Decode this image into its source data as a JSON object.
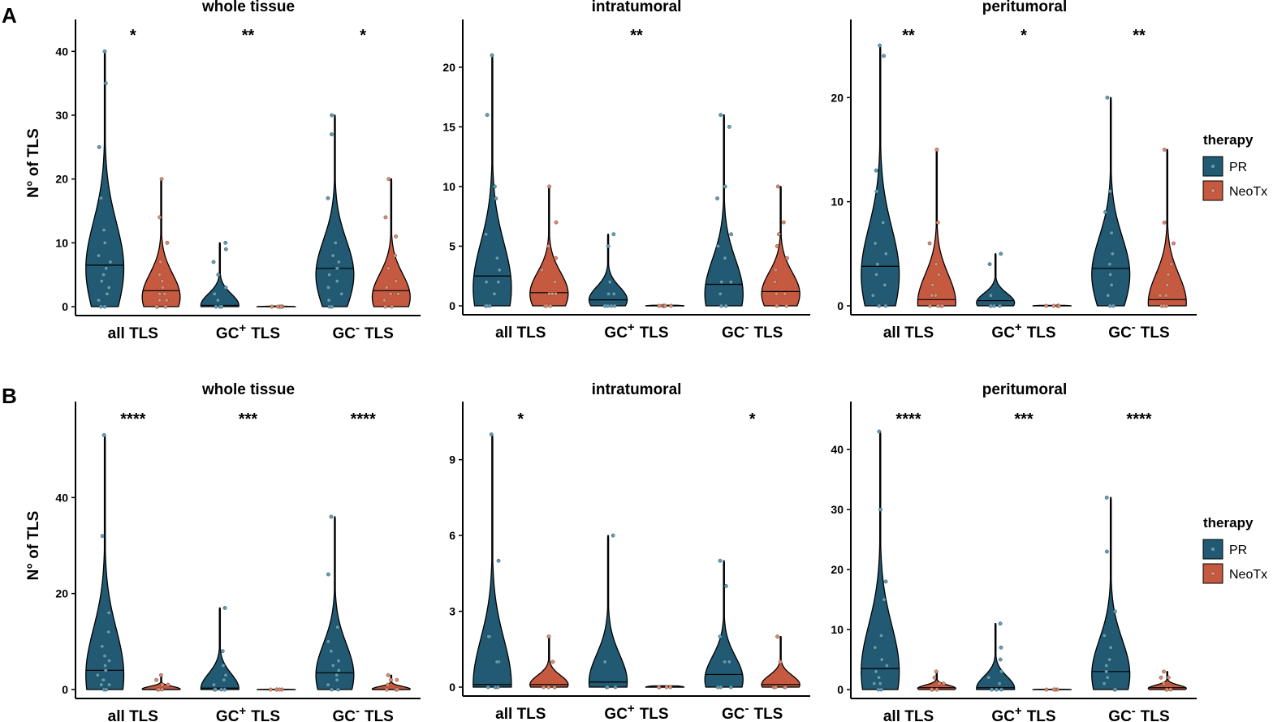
{
  "chart_data": [
    {
      "type": "violin",
      "row": "A",
      "title": "whole tissue",
      "ylabel": "N° of TLS",
      "ylim": [
        0,
        45
      ],
      "yticks": [
        0,
        10,
        20,
        30,
        40
      ],
      "categories": [
        {
          "base": "all TLS",
          "sup": "",
          "post": ""
        },
        {
          "base": "GC",
          "sup": "+",
          "post": "TLS"
        },
        {
          "base": "GC",
          "sup": "-",
          "post": "TLS"
        }
      ],
      "significance": [
        "*",
        "**",
        "*"
      ],
      "series": [
        {
          "name": "PR",
          "max": [
            40,
            10,
            30
          ],
          "median": [
            6.5,
            0.2,
            6
          ],
          "mode": [
            6,
            0.2,
            5
          ],
          "width": [
            0.9,
            0.9,
            0.9
          ],
          "points": [
            [
              40,
              35,
              25,
              17,
              12,
              10,
              8,
              7,
              6,
              5,
              4,
              3,
              2,
              1,
              0,
              0
            ],
            [
              10,
              9,
              7,
              5,
              3,
              2,
              1,
              0,
              0,
              0
            ],
            [
              30,
              27,
              17,
              10,
              8,
              7,
              6,
              5,
              4,
              3,
              2,
              1,
              0,
              0
            ]
          ]
        },
        {
          "name": "NeoTx",
          "max": [
            20,
            0.1,
            20
          ],
          "median": [
            2.5,
            0,
            2.5
          ],
          "mode": [
            1.5,
            0,
            1.5
          ],
          "width": [
            0.9,
            0.9,
            0.9
          ],
          "points": [
            [
              20,
              14,
              10,
              7,
              5,
              4,
              3,
              2,
              2,
              1,
              1,
              0,
              0,
              0
            ],
            [
              0,
              0,
              0,
              0,
              0,
              0
            ],
            [
              20,
              14,
              11,
              8,
              6,
              4,
              3,
              2,
              2,
              1,
              0,
              0
            ]
          ]
        }
      ]
    },
    {
      "type": "violin",
      "row": "A",
      "title": "intratumoral",
      "ylabel": "",
      "ylim": [
        0,
        24
      ],
      "yticks": [
        0,
        5,
        10,
        15,
        20
      ],
      "categories": [
        {
          "base": "all TLS",
          "sup": "",
          "post": ""
        },
        {
          "base": "GC",
          "sup": "+",
          "post": "TLS"
        },
        {
          "base": "GC",
          "sup": "-",
          "post": "TLS"
        }
      ],
      "significance": [
        "",
        "**",
        ""
      ],
      "series": [
        {
          "name": "PR",
          "max": [
            21,
            6,
            16
          ],
          "median": [
            2.5,
            0.5,
            1.8
          ],
          "mode": [
            1.5,
            0.5,
            1
          ],
          "width": [
            0.9,
            0.9,
            0.9
          ],
          "points": [
            [
              21,
              16,
              10,
              9,
              6,
              4,
              3,
              2,
              2,
              1,
              1,
              0,
              0,
              0
            ],
            [
              6,
              5,
              2,
              1,
              1,
              0,
              0,
              0,
              0
            ],
            [
              16,
              15,
              10,
              9,
              6,
              5,
              4,
              2,
              2,
              1,
              0,
              0
            ]
          ]
        },
        {
          "name": "NeoTx",
          "max": [
            10,
            0.05,
            10
          ],
          "median": [
            1.1,
            0,
            1.2
          ],
          "mode": [
            1,
            0,
            1
          ],
          "width": [
            0.9,
            0.9,
            0.9
          ],
          "points": [
            [
              10,
              7,
              5,
              4,
              3,
              2,
              1,
              1,
              1,
              0,
              0,
              0
            ],
            [
              0,
              0,
              0,
              0,
              0,
              0
            ],
            [
              10,
              7,
              6,
              5,
              4,
              3,
              2,
              1,
              1,
              0,
              0
            ]
          ]
        }
      ]
    },
    {
      "type": "violin",
      "row": "A",
      "title": "peritumoral",
      "ylabel": "",
      "ylim": [
        0,
        27.5
      ],
      "yticks": [
        0,
        10,
        20
      ],
      "categories": [
        {
          "base": "all TLS",
          "sup": "",
          "post": ""
        },
        {
          "base": "GC",
          "sup": "+",
          "post": "TLS"
        },
        {
          "base": "GC",
          "sup": "-",
          "post": "TLS"
        }
      ],
      "significance": [
        "**",
        "*",
        "**"
      ],
      "series": [
        {
          "name": "PR",
          "max": [
            25,
            5,
            20
          ],
          "median": [
            3.8,
            0.5,
            3.6
          ],
          "mode": [
            3,
            0.3,
            3
          ],
          "width": [
            0.9,
            0.9,
            0.9
          ],
          "points": [
            [
              25,
              24,
              13,
              11,
              8,
              6,
              5,
              4,
              3,
              2,
              1,
              0,
              0
            ],
            [
              5,
              4,
              1,
              0,
              0,
              0,
              0
            ],
            [
              20,
              11,
              9,
              7,
              5,
              4,
              3,
              2,
              1,
              0,
              0
            ]
          ]
        },
        {
          "name": "NeoTx",
          "max": [
            15,
            0.05,
            15
          ],
          "median": [
            0.6,
            0,
            0.6
          ],
          "mode": [
            0.3,
            0,
            0.3
          ],
          "width": [
            0.9,
            0.9,
            0.9
          ],
          "points": [
            [
              15,
              8,
              6,
              4,
              3,
              2,
              1,
              1,
              0,
              0,
              0,
              0
            ],
            [
              0,
              0,
              0,
              0,
              0
            ],
            [
              15,
              8,
              6,
              4,
              3,
              2,
              1,
              1,
              0,
              0,
              0
            ]
          ]
        }
      ]
    },
    {
      "type": "violin",
      "row": "B",
      "title": "whole tissue",
      "ylabel": "N° of TLS",
      "ylim": [
        0,
        60
      ],
      "yticks": [
        0,
        20,
        40
      ],
      "categories": [
        {
          "base": "all TLS",
          "sup": "",
          "post": ""
        },
        {
          "base": "GC",
          "sup": "+",
          "post": "TLS"
        },
        {
          "base": "GC",
          "sup": "-",
          "post": "TLS"
        }
      ],
      "significance": [
        "****",
        "***",
        "****"
      ],
      "series": [
        {
          "name": "PR",
          "max": [
            53,
            17,
            36
          ],
          "median": [
            4,
            0.3,
            3.5
          ],
          "mode": [
            3,
            0.2,
            3
          ],
          "width": [
            0.9,
            0.9,
            0.9
          ],
          "points": [
            [
              53,
              32,
              16,
              12,
              9,
              7,
              6,
              5,
              4,
              3,
              2,
              2,
              1,
              1,
              0,
              0
            ],
            [
              17,
              8,
              5,
              3,
              2,
              1,
              1,
              0,
              0,
              0,
              0
            ],
            [
              36,
              24,
              13,
              10,
              8,
              6,
              5,
              4,
              3,
              2,
              1,
              0,
              0
            ]
          ]
        },
        {
          "name": "NeoTx",
          "max": [
            3,
            0.05,
            3
          ],
          "median": [
            0,
            0,
            0
          ],
          "mode": [
            0.1,
            0,
            0.1
          ],
          "width": [
            0.9,
            0.9,
            0.9
          ],
          "points": [
            [
              3,
              2,
              1,
              1,
              0,
              0,
              0
            ],
            [
              0,
              0,
              0,
              0,
              0
            ],
            [
              3,
              2,
              2,
              1,
              0,
              0,
              0
            ]
          ]
        }
      ]
    },
    {
      "type": "violin",
      "row": "B",
      "title": "intratumoral",
      "ylabel": "",
      "ylim": [
        0,
        11.3
      ],
      "yticks": [
        0,
        3,
        6,
        9
      ],
      "categories": [
        {
          "base": "all TLS",
          "sup": "",
          "post": ""
        },
        {
          "base": "GC",
          "sup": "+",
          "post": "TLS"
        },
        {
          "base": "GC",
          "sup": "-",
          "post": "TLS"
        }
      ],
      "significance": [
        "*",
        "",
        "*"
      ],
      "series": [
        {
          "name": "PR",
          "max": [
            10,
            6,
            5
          ],
          "median": [
            0.1,
            0.2,
            0.5
          ],
          "mode": [
            0.1,
            0.2,
            0.3
          ],
          "width": [
            0.9,
            0.9,
            0.9
          ],
          "points": [
            [
              10,
              5,
              2,
              2,
              1,
              1,
              0,
              0,
              0,
              0
            ],
            [
              6,
              1,
              1,
              0,
              0,
              0,
              0
            ],
            [
              5,
              4,
              2,
              1,
              1,
              0,
              0,
              0
            ]
          ]
        },
        {
          "name": "NeoTx",
          "max": [
            2,
            0.05,
            2
          ],
          "median": [
            0.1,
            0,
            0.1
          ],
          "mode": [
            0.1,
            0,
            0.1
          ],
          "width": [
            0.9,
            0.9,
            0.9
          ],
          "points": [
            [
              2,
              1,
              0,
              0,
              0,
              0
            ],
            [
              0,
              0,
              0,
              0
            ],
            [
              2,
              1,
              0,
              0,
              0,
              0
            ]
          ]
        }
      ]
    },
    {
      "type": "violin",
      "row": "B",
      "title": "peritumoral",
      "ylabel": "",
      "ylim": [
        0,
        48
      ],
      "yticks": [
        0,
        10,
        20,
        30,
        40
      ],
      "categories": [
        {
          "base": "all TLS",
          "sup": "",
          "post": ""
        },
        {
          "base": "GC",
          "sup": "+",
          "post": "TLS"
        },
        {
          "base": "GC",
          "sup": "-",
          "post": "TLS"
        }
      ],
      "significance": [
        "****",
        "***",
        "****"
      ],
      "series": [
        {
          "name": "PR",
          "max": [
            43,
            11,
            32
          ],
          "median": [
            3.5,
            0.3,
            3
          ],
          "mode": [
            3,
            0.2,
            2.5
          ],
          "width": [
            0.9,
            0.9,
            0.9
          ],
          "points": [
            [
              43,
              30,
              18,
              15,
              9,
              7,
              5,
              4,
              3,
              2,
              1,
              1,
              0,
              0
            ],
            [
              11,
              7,
              5,
              3,
              2,
              1,
              0,
              0,
              0
            ],
            [
              32,
              23,
              13,
              9,
              7,
              5,
              4,
              3,
              2,
              1,
              0,
              0
            ]
          ]
        },
        {
          "name": "NeoTx",
          "max": [
            3,
            0.05,
            3
          ],
          "median": [
            0.3,
            0,
            0.3
          ],
          "mode": [
            0.2,
            0,
            0.2
          ],
          "width": [
            0.9,
            0.9,
            0.9
          ],
          "points": [
            [
              3,
              2,
              1,
              1,
              0,
              0,
              0
            ],
            [
              0,
              0,
              0,
              0
            ],
            [
              3,
              2,
              2,
              1,
              0,
              0,
              0
            ]
          ]
        }
      ]
    }
  ],
  "panel_labels": {
    "A": "A",
    "B": "B"
  },
  "legend": {
    "title": "therapy",
    "entries": [
      {
        "name": "PR",
        "color": "#215a72"
      },
      {
        "name": "NeoTx",
        "color": "#c55a41"
      }
    ]
  },
  "colors": {
    "PR": "#215a72",
    "NeoTx": "#c55a41",
    "PR_point": "#5d9fb8",
    "NeoTx_point": "#e08a6e",
    "outline": "#000000"
  }
}
